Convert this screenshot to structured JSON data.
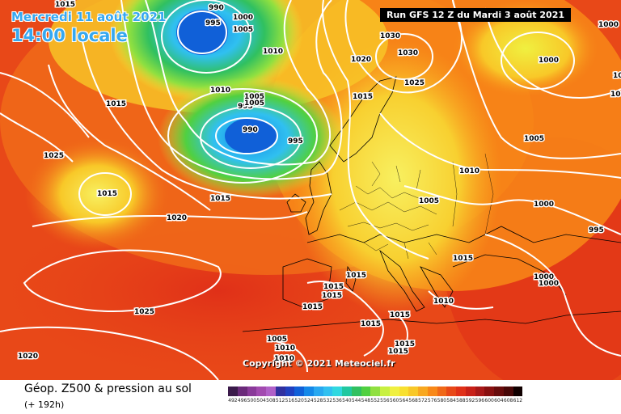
{
  "header": {
    "date_line": "Mercredi 11 août 2021",
    "time_line": "14:00 locale",
    "run_info": "Run GFS 12 Z du Mardi 3 août 2021"
  },
  "copyright": "Copyright © 2021 Meteociel.fr",
  "footer": {
    "title": "Géop. Z500 & pression au sol",
    "subtitle": "(+ 192h)"
  },
  "legend": {
    "values": [
      "492",
      "496",
      "500",
      "504",
      "508",
      "512",
      "516",
      "520",
      "524",
      "528",
      "532",
      "536",
      "540",
      "544",
      "548",
      "552",
      "556",
      "560",
      "564",
      "568",
      "572",
      "576",
      "580",
      "584",
      "588",
      "592",
      "596",
      "600",
      "604",
      "608",
      "612"
    ],
    "colors": [
      "#3a1a4a",
      "#6a2a7a",
      "#8a3a9a",
      "#a24ab0",
      "#b060c8",
      "#3030a0",
      "#2040c0",
      "#1060d8",
      "#1488e8",
      "#28a8f0",
      "#30c0f0",
      "#30d8e0",
      "#20c8a0",
      "#30c060",
      "#50d040",
      "#90e040",
      "#c8f040",
      "#f0f040",
      "#f8e030",
      "#f8c828",
      "#f8a820",
      "#f88818",
      "#f06818",
      "#e84818",
      "#e03018",
      "#c82018",
      "#a81818",
      "#881010",
      "#680c0c",
      "#480808",
      "#100000"
    ]
  },
  "map": {
    "isobar_labels": [
      {
        "text": "1015",
        "id": "l1"
      },
      {
        "text": "990",
        "id": "l2"
      },
      {
        "text": "995",
        "id": "l3"
      },
      {
        "text": "1000",
        "id": "l4"
      },
      {
        "text": "1005",
        "id": "l5"
      },
      {
        "text": "1010",
        "id": "l6"
      },
      {
        "text": "1010",
        "id": "l7"
      },
      {
        "text": "1005",
        "id": "l8"
      },
      {
        "text": "995",
        "id": "l9"
      },
      {
        "text": "1005",
        "id": "l10"
      },
      {
        "text": "990",
        "id": "l11"
      },
      {
        "text": "995",
        "id": "l12"
      },
      {
        "text": "1025",
        "id": "l13"
      },
      {
        "text": "1015",
        "id": "l14"
      },
      {
        "text": "1015",
        "id": "l15"
      },
      {
        "text": "1020",
        "id": "l16"
      },
      {
        "text": "1025",
        "id": "l17"
      },
      {
        "text": "1020",
        "id": "l18"
      },
      {
        "text": "1015",
        "id": "l19"
      },
      {
        "text": "1015",
        "id": "l20"
      },
      {
        "text": "1030",
        "id": "l21"
      },
      {
        "text": "1030",
        "id": "l22"
      },
      {
        "text": "1020",
        "id": "l23"
      },
      {
        "text": "1025",
        "id": "l24"
      },
      {
        "text": "1000",
        "id": "l25"
      },
      {
        "text": "1000",
        "id": "l26"
      },
      {
        "text": "1005",
        "id": "l27"
      },
      {
        "text": "1010",
        "id": "l28"
      },
      {
        "text": "1005",
        "id": "l29"
      },
      {
        "text": "1005",
        "id": "l30"
      },
      {
        "text": "995",
        "id": "l31"
      },
      {
        "text": "1015",
        "id": "l32"
      },
      {
        "text": "1000",
        "id": "l33"
      },
      {
        "text": "1000",
        "id": "l34"
      },
      {
        "text": "1015",
        "id": "l35"
      },
      {
        "text": "1015",
        "id": "l36"
      },
      {
        "text": "1015",
        "id": "l37"
      },
      {
        "text": "1010",
        "id": "l38"
      },
      {
        "text": "1015",
        "id": "l39"
      },
      {
        "text": "1015",
        "id": "l40"
      },
      {
        "text": "1015",
        "id": "l41"
      },
      {
        "text": "1015",
        "id": "l42"
      },
      {
        "text": "1010",
        "id": "l43"
      },
      {
        "text": "1015",
        "id": "l44"
      },
      {
        "text": "1000",
        "id": "l45"
      },
      {
        "text": "1005",
        "id": "l46"
      },
      {
        "text": "1010",
        "id": "l47"
      },
      {
        "text": "1000",
        "id": "l48"
      }
    ]
  }
}
